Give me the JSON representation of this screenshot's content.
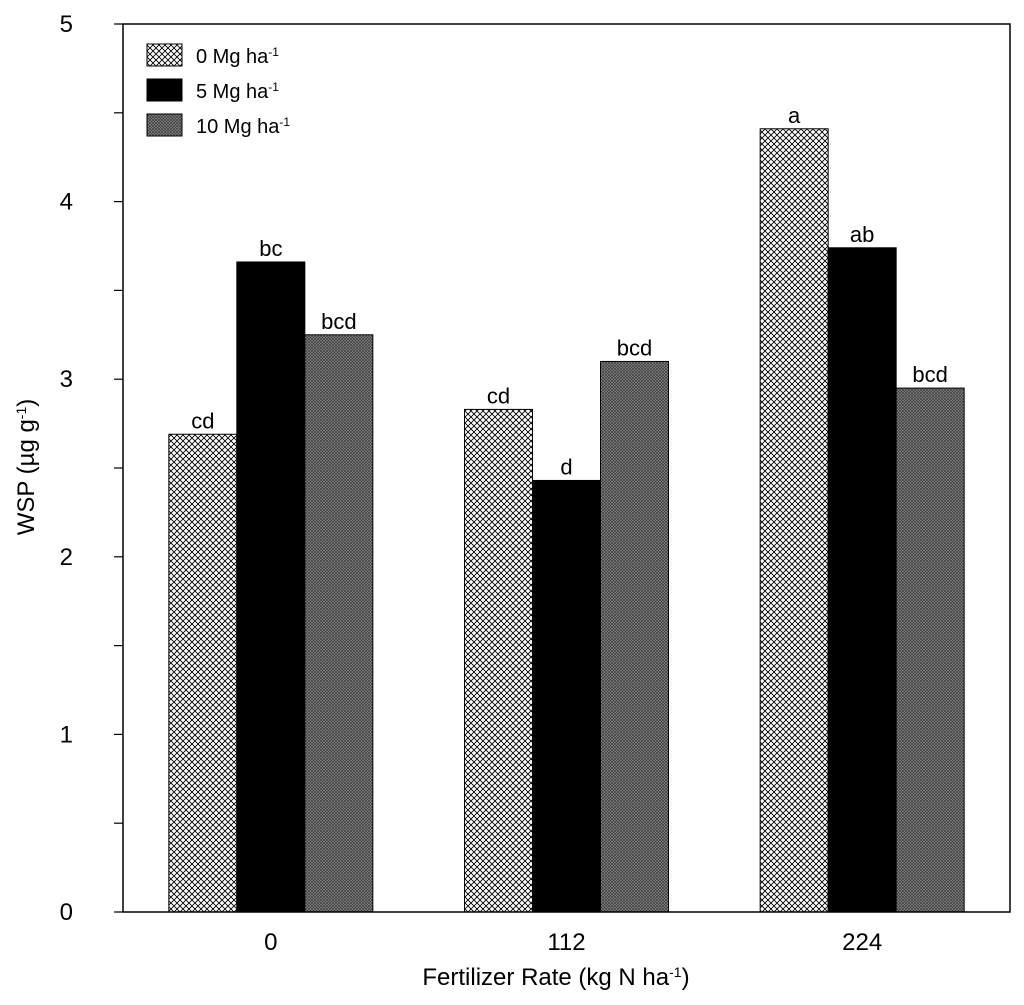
{
  "chart_data": {
    "type": "bar",
    "title": "",
    "xlabel": "Fertilizer Rate (kg N ha",
    "xlabel_sup": "-1",
    "xlabel_suffix": ")",
    "ylabel": "WSP (µg g",
    "ylabel_sup": "-1",
    "ylabel_suffix": ")",
    "categories": [
      "0",
      "112",
      "224"
    ],
    "ylim": [
      0,
      5
    ],
    "yticks": [
      0,
      1,
      2,
      3,
      4,
      5
    ],
    "yminor_step": 0.5,
    "grid": false,
    "legend_position": "top-left",
    "series": [
      {
        "name": "0 Mg ha",
        "name_sup": "-1",
        "pattern": "crosshatch",
        "values": [
          2.69,
          2.83,
          4.41
        ],
        "labels": [
          "cd",
          "cd",
          "a"
        ]
      },
      {
        "name": "5 Mg ha",
        "name_sup": "-1",
        "pattern": "solid-black",
        "values": [
          3.66,
          2.43,
          3.74
        ],
        "labels": [
          "bc",
          "d",
          "ab"
        ]
      },
      {
        "name": "10 Mg ha",
        "name_sup": "-1",
        "pattern": "dense-gray",
        "values": [
          3.25,
          3.1,
          2.95
        ],
        "labels": [
          "bcd",
          "bcd",
          "bcd"
        ]
      }
    ]
  }
}
